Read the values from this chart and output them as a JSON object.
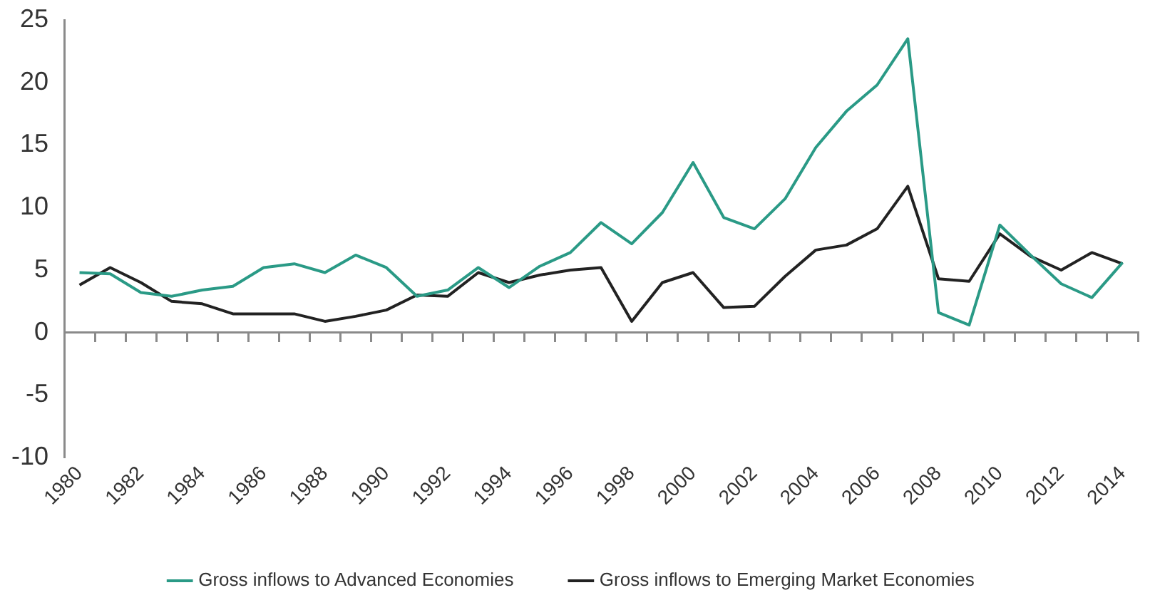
{
  "chart_data": {
    "type": "line",
    "categories": [
      "1980",
      null,
      "1982",
      null,
      "1984",
      null,
      "1986",
      null,
      "1988",
      null,
      "1990",
      null,
      "1992",
      null,
      "1994",
      null,
      "1996",
      null,
      "1998",
      null,
      "2000",
      null,
      "2002",
      null,
      "2004",
      null,
      "2006",
      null,
      "2008",
      null,
      "2010",
      null,
      "2012",
      null,
      "2014"
    ],
    "series": [
      {
        "name": "Gross inflows to Advanced Economies",
        "color": "#2a9a86",
        "values": [
          4.8,
          4.7,
          3.2,
          2.9,
          3.4,
          3.7,
          5.2,
          5.5,
          4.8,
          6.2,
          5.2,
          2.9,
          3.4,
          5.2,
          3.6,
          5.3,
          6.4,
          8.8,
          7.1,
          9.6,
          13.6,
          9.2,
          8.3,
          10.7,
          14.8,
          17.7,
          19.8,
          23.5,
          1.6,
          0.6,
          8.6,
          6.2,
          3.9,
          2.8,
          5.6
        ]
      },
      {
        "name": "Gross inflows to Emerging Market Economies",
        "color": "#222222",
        "values": [
          3.8,
          5.2,
          4.0,
          2.5,
          2.3,
          1.5,
          1.5,
          1.5,
          0.9,
          1.3,
          1.8,
          3.0,
          2.9,
          4.8,
          4.0,
          4.6,
          5.0,
          5.2,
          0.9,
          4.0,
          4.8,
          2.0,
          2.1,
          4.5,
          6.6,
          7.0,
          8.3,
          11.7,
          4.3,
          4.1,
          7.9,
          6.1,
          5.0,
          6.4,
          5.5
        ]
      }
    ],
    "ylim": [
      -10,
      25
    ],
    "yticks": [
      -10,
      -5,
      0,
      5,
      10,
      15,
      20,
      25
    ],
    "ref_lines": [
      {
        "axis": "y",
        "value": 0,
        "color": "#8a8a8a"
      }
    ],
    "grid": false,
    "legend": "bottom",
    "marker": "none",
    "line_style": "solid"
  }
}
